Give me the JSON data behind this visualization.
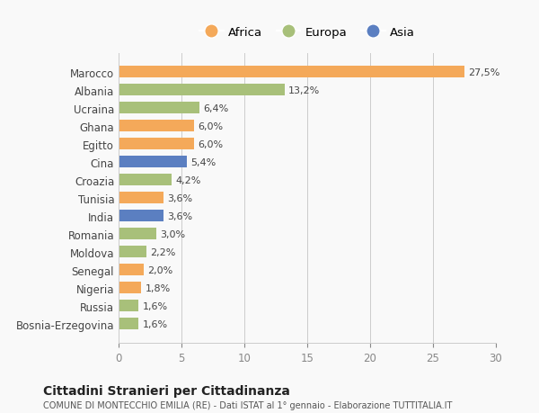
{
  "countries": [
    "Marocco",
    "Albania",
    "Ucraina",
    "Ghana",
    "Egitto",
    "Cina",
    "Croazia",
    "Tunisia",
    "India",
    "Romania",
    "Moldova",
    "Senegal",
    "Nigeria",
    "Russia",
    "Bosnia-Erzegovina"
  ],
  "values": [
    27.5,
    13.2,
    6.4,
    6.0,
    6.0,
    5.4,
    4.2,
    3.6,
    3.6,
    3.0,
    2.2,
    2.0,
    1.8,
    1.6,
    1.6
  ],
  "labels": [
    "27,5%",
    "13,2%",
    "6,4%",
    "6,0%",
    "6,0%",
    "5,4%",
    "4,2%",
    "3,6%",
    "3,6%",
    "3,0%",
    "2,2%",
    "2,0%",
    "1,8%",
    "1,6%",
    "1,6%"
  ],
  "continents": [
    "Africa",
    "Europa",
    "Europa",
    "Africa",
    "Africa",
    "Asia",
    "Europa",
    "Africa",
    "Asia",
    "Europa",
    "Europa",
    "Africa",
    "Africa",
    "Europa",
    "Europa"
  ],
  "colors": {
    "Africa": "#F4A95A",
    "Europa": "#A8C07A",
    "Asia": "#5B7FC1"
  },
  "legend_labels": [
    "Africa",
    "Europa",
    "Asia"
  ],
  "legend_colors": [
    "#F4A95A",
    "#A8C07A",
    "#5B7FC1"
  ],
  "xlim": [
    0,
    30
  ],
  "xticks": [
    0,
    5,
    10,
    15,
    20,
    25,
    30
  ],
  "title": "Cittadini Stranieri per Cittadinanza",
  "subtitle": "COMUNE DI MONTECCHIO EMILIA (RE) - Dati ISTAT al 1° gennaio - Elaborazione TUTTITALIA.IT",
  "background_color": "#f9f9f9",
  "bar_height": 0.65
}
